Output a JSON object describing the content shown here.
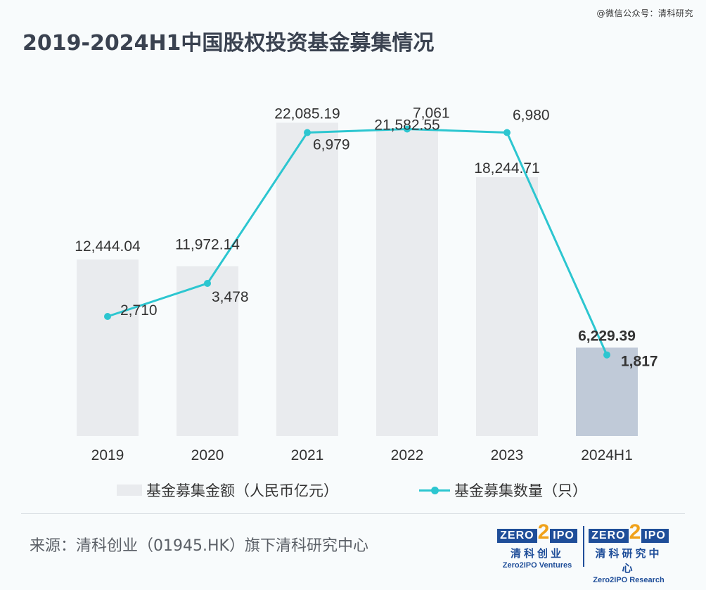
{
  "watermark": "@微信公众号：清科研究",
  "title": "2019-2024H1中国股权投资基金募集情况",
  "chart_data": {
    "type": "bar+line",
    "categories": [
      "2019",
      "2020",
      "2021",
      "2022",
      "2023",
      "2024H1"
    ],
    "series": [
      {
        "name": "基金募集金额（人民币亿元）",
        "type": "bar",
        "values": [
          12444.04,
          11972.14,
          22085.19,
          21582.55,
          18244.71,
          6229.39
        ],
        "labels": [
          "12,444.04",
          "11,972.14",
          "22,085.19",
          "21,582.55",
          "18,244.71",
          "6,229.39"
        ],
        "color": "#e9ebee",
        "highlight_color": "#c0cad8"
      },
      {
        "name": "基金募集数量（只）",
        "type": "line",
        "values": [
          2710,
          3478,
          6979,
          7061,
          6980,
          1817
        ],
        "labels": [
          "2,710",
          "3,478",
          "6,979",
          "7,061",
          "6,980",
          "1,817"
        ],
        "color": "#2cc6d0"
      }
    ],
    "highlight_category": "2024H1",
    "grid": false,
    "legend_position": "bottom"
  },
  "source": "来源：清科创业（01945.HK）旗下清科研究中心",
  "logos": [
    {
      "mark_left": "ZERO",
      "mark_mid": "2",
      "mark_right": "IPO",
      "cn": "清科创业",
      "en": "Zero2IPO Ventures"
    },
    {
      "mark_left": "ZERO",
      "mark_mid": "2",
      "mark_right": "IPO",
      "cn": "清科研究中心",
      "en": "Zero2IPO Research"
    }
  ]
}
